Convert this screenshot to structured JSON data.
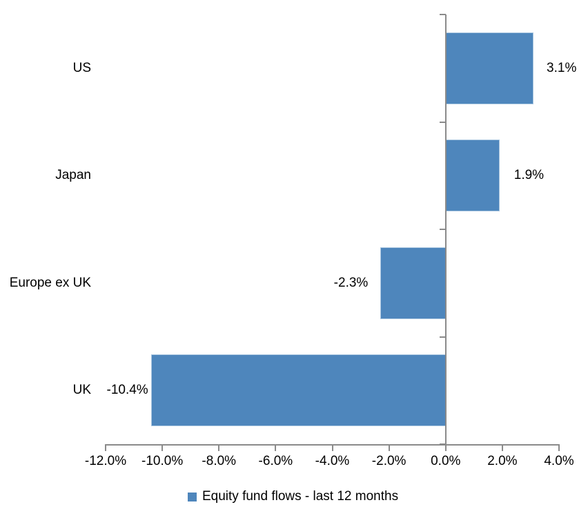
{
  "chart_data": {
    "type": "bar",
    "orientation": "horizontal",
    "title": "",
    "categories": [
      "US",
      "Japan",
      "Europe ex UK",
      "UK"
    ],
    "series": [
      {
        "name": "Equity fund flows - last 12 months",
        "values": [
          3.1,
          1.9,
          -2.3,
          -10.4
        ],
        "data_labels": [
          "3.1%",
          "1.9%",
          "-2.3%",
          "-10.4%"
        ]
      }
    ],
    "xlim": [
      -12,
      4
    ],
    "x_tick_values": [
      -12,
      -10,
      -8,
      -6,
      -4,
      -2,
      0,
      2,
      4
    ],
    "x_tick_labels": [
      "-12.0%",
      "-10.0%",
      "-8.0%",
      "-6.0%",
      "-4.0%",
      "-2.0%",
      "0.0%",
      "2.0%",
      "4.0%"
    ],
    "grid": false,
    "legend_position": "bottom",
    "colors": {
      "bar_fill": "#4e86bc",
      "bar_border": "#a9c6e0",
      "axis": "#8a8a8a",
      "text": "#000000"
    }
  },
  "legend": {
    "label": "Equity fund flows - last 12 months"
  }
}
